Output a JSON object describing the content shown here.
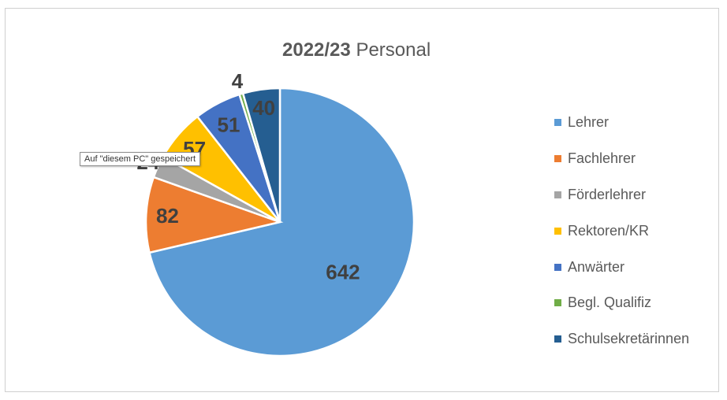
{
  "chart_data": {
    "type": "pie",
    "title_year": "2022/23",
    "title_rest": "Personal",
    "categories": [
      "Lehrer",
      "Fachlehrer",
      "Förderlehrer",
      "Rektoren/KR",
      "Anwärter",
      "Begl. Qualifiz",
      "Schulsekretärinnen"
    ],
    "values": [
      642,
      82,
      24,
      57,
      51,
      4,
      40
    ],
    "data_labels": [
      "642",
      "82",
      "24",
      "57",
      "51",
      "4",
      "40"
    ],
    "colors": [
      "#5B9BD5",
      "#ED7D31",
      "#A5A5A5",
      "#FFC000",
      "#4472C4",
      "#70AD47",
      "#255E91"
    ],
    "legend_position": "right",
    "start_angle_deg": 0,
    "direction": "clockwise"
  },
  "tooltip": {
    "text": "Auf \"diesem PC\" gespeichert"
  }
}
